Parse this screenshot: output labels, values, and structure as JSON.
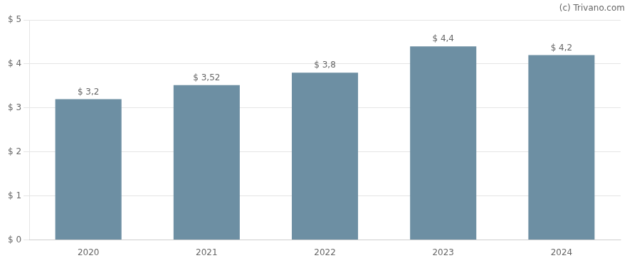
{
  "chart_data": {
    "type": "bar",
    "categories": [
      "2020",
      "2021",
      "2022",
      "2023",
      "2024"
    ],
    "values": [
      3.2,
      3.52,
      3.8,
      4.4,
      4.2
    ],
    "value_labels": [
      "$ 3,2",
      "$ 3,52",
      "$ 3,8",
      "$ 4,4",
      "$ 4,2"
    ],
    "data_labels": true,
    "color": "#6d8fa3",
    "ylim": [
      0,
      5
    ],
    "yticks": [
      {
        "value": 0,
        "label": "$ 0"
      },
      {
        "value": 1,
        "label": "$ 1"
      },
      {
        "value": 2,
        "label": "$ 2"
      },
      {
        "value": 3,
        "label": "$ 3"
      },
      {
        "value": 4,
        "label": "$ 4"
      },
      {
        "value": 5,
        "label": "$ 5"
      }
    ],
    "grid": true,
    "annotations": [
      {
        "text": "(c) Trivano.com"
      }
    ]
  }
}
